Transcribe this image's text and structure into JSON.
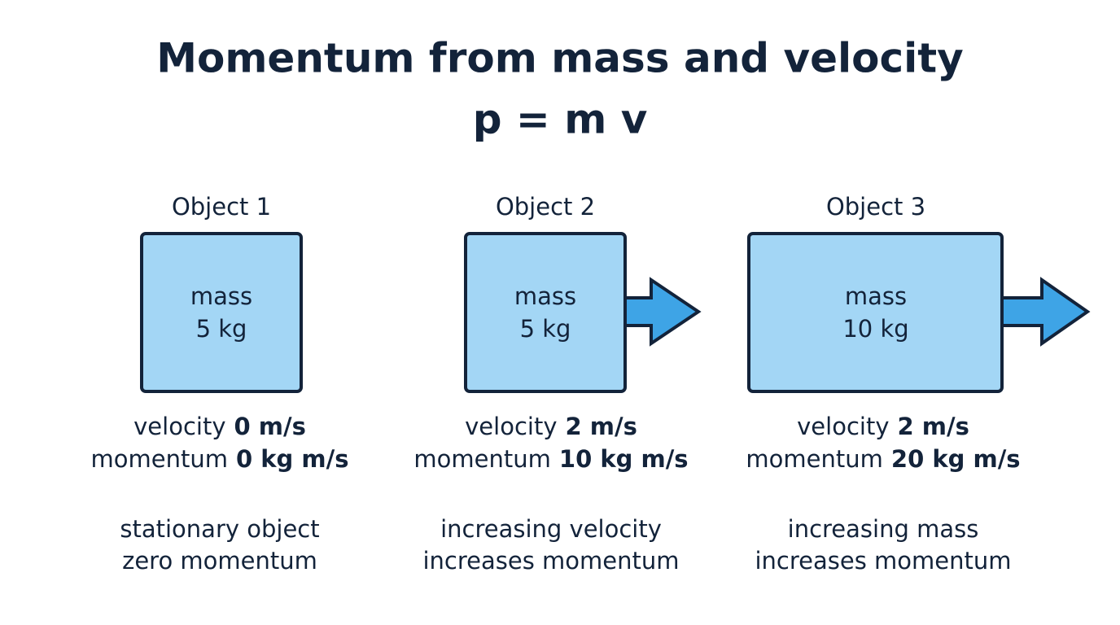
{
  "title": "Momentum from mass and velocity",
  "formula": "p = m v",
  "objects": [
    {
      "label": "Object 1",
      "mass_label": "mass",
      "mass": "5 kg",
      "velocity_label": "velocity",
      "velocity": "0 m/s",
      "momentum_label": "momentum",
      "momentum": "0 kg m/s",
      "note": [
        "stationary object",
        "zero momentum"
      ]
    },
    {
      "label": "Object 2",
      "mass_label": "mass",
      "mass": "5 kg",
      "velocity_label": "velocity",
      "velocity": "2 m/s",
      "momentum_label": "momentum",
      "momentum": "10 kg m/s",
      "note": [
        "increasing velocity",
        "increases momentum"
      ]
    },
    {
      "label": "Object 3",
      "mass_label": "mass",
      "mass": "10 kg",
      "velocity_label": "velocity",
      "velocity": "2 m/s",
      "momentum_label": "momentum",
      "momentum": "20 kg m/s",
      "note": [
        "increasing mass",
        "increases momentum"
      ]
    }
  ]
}
